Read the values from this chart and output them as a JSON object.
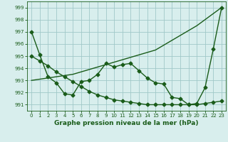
{
  "title": "Graphe pression niveau de la mer (hPa)",
  "background_color": "#d8eeed",
  "grid_color": "#a0c8c8",
  "line_color": "#1a5c1a",
  "xlim": [
    -0.5,
    23.5
  ],
  "ylim": [
    990.5,
    999.5
  ],
  "yticks": [
    991,
    992,
    993,
    994,
    995,
    996,
    997,
    998,
    999
  ],
  "xticks": [
    0,
    1,
    2,
    3,
    4,
    5,
    6,
    7,
    8,
    9,
    10,
    11,
    12,
    13,
    14,
    15,
    16,
    17,
    18,
    19,
    20,
    21,
    22,
    23
  ],
  "series1_x": [
    0,
    1,
    2,
    3,
    4,
    5,
    6,
    7,
    8,
    9,
    10,
    11,
    12,
    13,
    14,
    15,
    16,
    17,
    18,
    19,
    20,
    21,
    22,
    23
  ],
  "series1_y": [
    997.0,
    995.1,
    993.3,
    992.8,
    991.9,
    991.8,
    992.9,
    993.0,
    993.5,
    994.4,
    994.1,
    994.3,
    994.4,
    993.8,
    993.2,
    992.8,
    992.7,
    991.6,
    991.5,
    991.0,
    991.1,
    992.4,
    995.6,
    999.0
  ],
  "series1_markers_x": [
    0,
    1,
    2,
    3,
    4,
    5,
    6,
    7,
    8,
    9,
    10,
    11,
    12,
    13,
    14,
    15,
    16,
    17,
    18,
    19,
    20,
    21,
    22,
    23
  ],
  "series2_x": [
    0,
    1,
    2,
    3,
    4,
    5,
    6,
    7,
    8,
    9,
    10,
    11,
    12,
    13,
    14,
    15,
    16,
    17,
    18,
    19,
    20,
    21,
    22,
    23
  ],
  "series2_y": [
    995.0,
    994.6,
    994.2,
    993.7,
    993.3,
    992.9,
    992.5,
    992.1,
    991.8,
    991.6,
    991.4,
    991.3,
    991.2,
    991.1,
    991.0,
    991.0,
    991.0,
    991.0,
    991.0,
    991.0,
    991.0,
    991.1,
    991.2,
    991.3
  ],
  "series3_x": [
    0,
    5,
    10,
    15,
    20,
    21,
    22,
    23
  ],
  "series3_y": [
    993.0,
    993.5,
    994.5,
    995.5,
    997.5,
    998.0,
    998.5,
    999.0
  ],
  "marker": "D",
  "marker_size": 2.5,
  "line_width": 1.0,
  "tick_fontsize": 5,
  "title_fontsize": 6.5
}
